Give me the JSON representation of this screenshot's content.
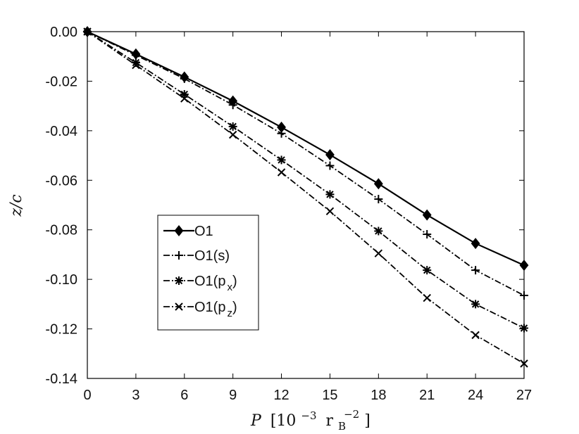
{
  "chart_data": {
    "type": "line",
    "xlabel": "P [10⁻³ r_B⁻²]",
    "ylabel": "z/c",
    "xlim": [
      0,
      27
    ],
    "ylim": [
      -0.14,
      0.0
    ],
    "x_ticks": [
      "0",
      "3",
      "6",
      "9",
      "12",
      "15",
      "18",
      "21",
      "24",
      "27"
    ],
    "y_ticks": [
      "0.00",
      "-0.02",
      "-0.04",
      "-0.06",
      "-0.08",
      "-0.10",
      "-0.12",
      "-0.14"
    ],
    "grid": false,
    "legend_position": "left-center",
    "x": [
      0,
      3,
      6,
      9,
      12,
      15,
      18,
      21,
      24,
      27
    ],
    "series": [
      {
        "name": "O1",
        "marker": "diamond",
        "dash": "solid",
        "color": "#000000",
        "values": [
          0.0,
          -0.009,
          -0.0183,
          -0.028,
          -0.0386,
          -0.0497,
          -0.0614,
          -0.074,
          -0.0855,
          -0.0943
        ]
      },
      {
        "name": "O1(s)",
        "marker": "plus",
        "dash": "dash-dot",
        "color": "#000000",
        "values": [
          0.0,
          -0.0095,
          -0.019,
          -0.0296,
          -0.0411,
          -0.0541,
          -0.0676,
          -0.0818,
          -0.0963,
          -0.1065
        ]
      },
      {
        "name": "O1(p_x)",
        "marker": "asterisk",
        "dash": "dash-dot",
        "color": "#000000",
        "values": [
          0.0,
          -0.0125,
          -0.0253,
          -0.0383,
          -0.0518,
          -0.0657,
          -0.0805,
          -0.0963,
          -0.11,
          -0.1197
        ]
      },
      {
        "name": "O1(p_z)",
        "marker": "cross",
        "dash": "dash-dot",
        "color": "#000000",
        "values": [
          0.0,
          -0.0135,
          -0.027,
          -0.0416,
          -0.0568,
          -0.0725,
          -0.0895,
          -0.1075,
          -0.1225,
          -0.134
        ]
      }
    ]
  }
}
